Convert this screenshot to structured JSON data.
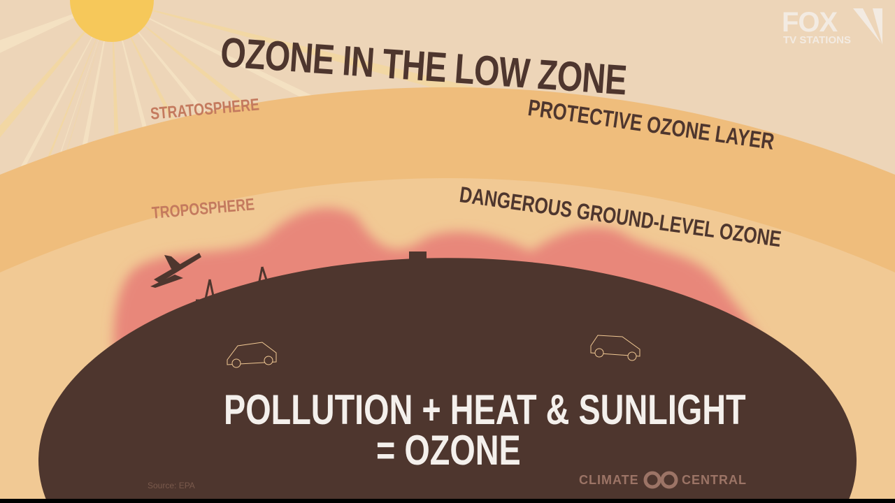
{
  "title": "OZONE IN THE LOW ZONE",
  "layers": {
    "stratosphere": "STRATOSPHERE",
    "troposphere": "TROPOSPHERE",
    "protective": "PROTECTIVE OZONE LAYER",
    "dangerous": "DANGEROUS GROUND-LEVEL OZONE"
  },
  "equation": {
    "line1": "POLLUTION + HEAT & SUNLIGHT",
    "line2": "= OZONE"
  },
  "source": "Source: EPA",
  "credit": {
    "left": "CLIMATE",
    "right": "CENTRAL"
  },
  "watermark": {
    "brand": "FOX",
    "sub": "TV STATIONS"
  },
  "colors": {
    "sky": "#edd5b8",
    "stratosphere": "#efbd7c",
    "troposphere": "#f1c994",
    "smog": "#e8877a",
    "ground": "#4e362e",
    "sun": "#f6d98a"
  }
}
